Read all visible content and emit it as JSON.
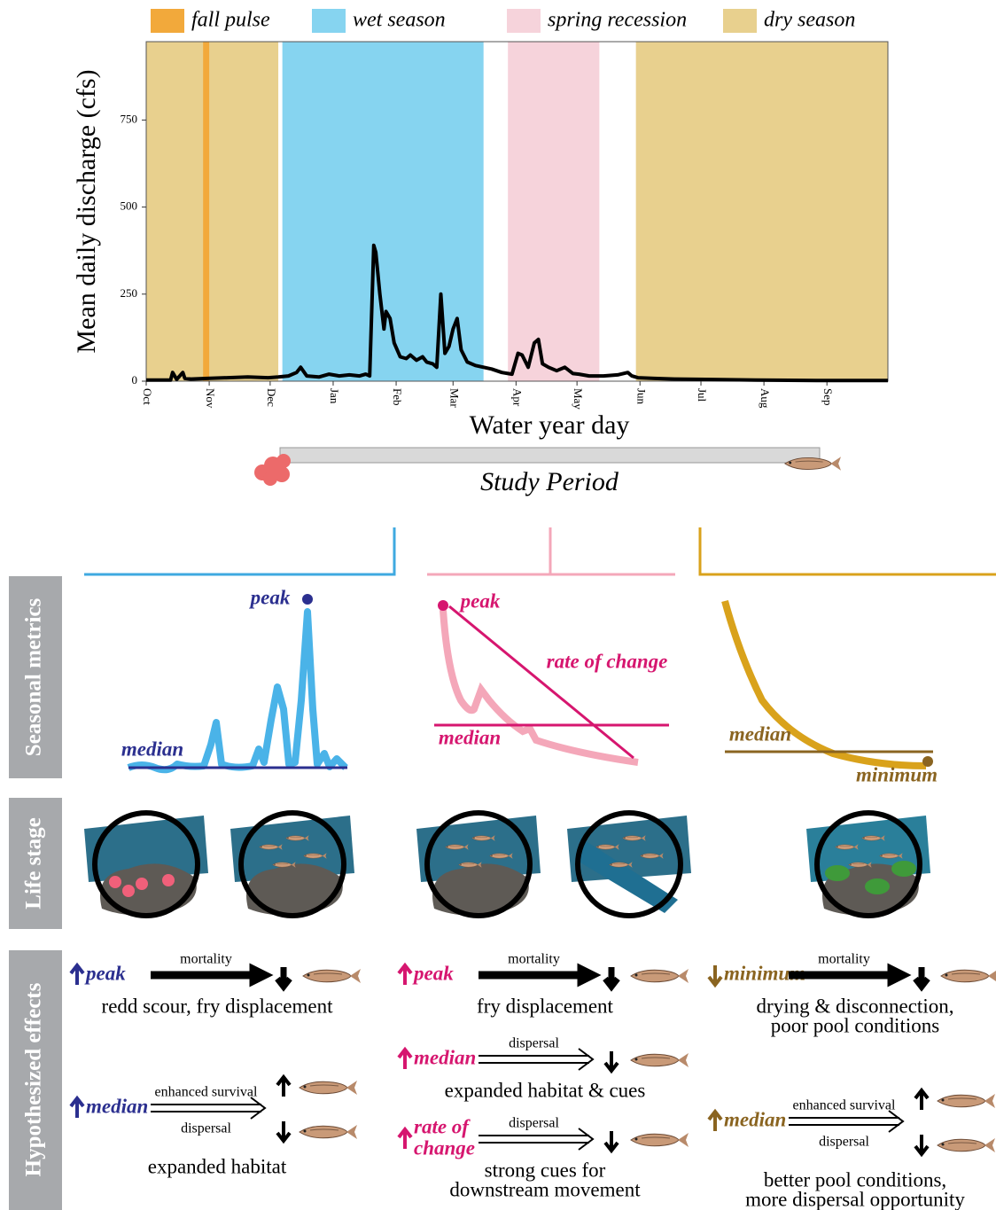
{
  "chart_data": {
    "type": "line",
    "ylabel": "Mean daily discharge (cfs)",
    "xlabel": "Water year day",
    "xlim": [
      0,
      365
    ],
    "ylim": [
      0,
      975
    ],
    "xticks": [
      {
        "value": 0,
        "label": "Oct"
      },
      {
        "value": 31,
        "label": "Nov"
      },
      {
        "value": 61,
        "label": "Dec"
      },
      {
        "value": 92,
        "label": "Jan"
      },
      {
        "value": 123,
        "label": "Feb"
      },
      {
        "value": 151,
        "label": "Mar"
      },
      {
        "value": 182,
        "label": "Apr"
      },
      {
        "value": 212,
        "label": "May"
      },
      {
        "value": 243,
        "label": "Jun"
      },
      {
        "value": 273,
        "label": "Jul"
      },
      {
        "value": 304,
        "label": "Aug"
      },
      {
        "value": 335,
        "label": "Sep"
      }
    ],
    "yticks": [
      0,
      250,
      500,
      750
    ],
    "seasons": [
      {
        "name": "fall pulse",
        "color": "#f2a93b",
        "spans": [
          [
            28,
            31
          ]
        ]
      },
      {
        "name": "wet season",
        "color": "#86d4f0",
        "spans": [
          [
            67,
            166
          ]
        ]
      },
      {
        "name": "spring recession",
        "color": "#f6d3db",
        "spans": [
          [
            178,
            223
          ]
        ]
      },
      {
        "name": "dry season",
        "color": "#e8d08e",
        "spans": [
          [
            0,
            65
          ],
          [
            241,
            365
          ]
        ]
      }
    ],
    "x": [
      0,
      8,
      12,
      13,
      15,
      18,
      19,
      22,
      30,
      40,
      50,
      60,
      65,
      70,
      74,
      76,
      79,
      85,
      90,
      95,
      100,
      105,
      108,
      110,
      112,
      113,
      115,
      117,
      118,
      120,
      122,
      125,
      128,
      130,
      133,
      136,
      138,
      141,
      143,
      145,
      147,
      149,
      151,
      153,
      155,
      158,
      162,
      166,
      170,
      175,
      180,
      183,
      185,
      188,
      191,
      193,
      195,
      198,
      202,
      206,
      210,
      213,
      218,
      225,
      232,
      237,
      239,
      242,
      250,
      260,
      275,
      300,
      330,
      365
    ],
    "series": [
      {
        "color": "#000000",
        "values": [
          3,
          3,
          3,
          25,
          5,
          25,
          8,
          6,
          8,
          10,
          12,
          10,
          12,
          15,
          25,
          40,
          15,
          12,
          20,
          15,
          18,
          15,
          20,
          15,
          390,
          370,
          250,
          150,
          200,
          180,
          110,
          70,
          65,
          75,
          60,
          70,
          55,
          50,
          40,
          250,
          80,
          100,
          150,
          180,
          90,
          55,
          45,
          40,
          35,
          25,
          20,
          80,
          75,
          40,
          110,
          120,
          50,
          40,
          30,
          40,
          22,
          20,
          15,
          15,
          18,
          25,
          15,
          10,
          8,
          6,
          5,
          3,
          2,
          2
        ]
      }
    ]
  },
  "study_period": "Study Period",
  "row_labels": [
    "Seasonal metrics",
    "Life stage",
    "Hypothesized effects"
  ],
  "columns": [
    {
      "color": "#2b2f8f",
      "metric_labels": [
        "peak",
        "median"
      ],
      "effects": [
        {
          "metric": [
            "peak"
          ],
          "direction": "up",
          "processes": [
            "mortality"
          ],
          "outcome": [
            "redd scour, fry displacement"
          ]
        },
        {
          "metric": [
            "median"
          ],
          "direction": "up",
          "processes": [
            "enhanced survival",
            "dispersal"
          ],
          "outcome": [
            "expanded habitat"
          ]
        }
      ]
    },
    {
      "color": "#d6166f",
      "metric_labels": [
        "peak",
        "rate of change",
        "median"
      ],
      "effects": [
        {
          "metric": [
            "peak"
          ],
          "direction": "up",
          "processes": [
            "mortality"
          ],
          "outcome": [
            "fry displacement"
          ]
        },
        {
          "metric": [
            "median"
          ],
          "direction": "up",
          "processes": [
            "dispersal"
          ],
          "outcome": [
            "expanded habitat & cues"
          ]
        },
        {
          "metric": [
            "rate of",
            "change"
          ],
          "direction": "up",
          "processes": [
            "dispersal"
          ],
          "outcome": [
            "strong cues for",
            "downstream movement"
          ]
        }
      ]
    },
    {
      "color": "#8a6420",
      "metric_labels": [
        "median",
        "minimum"
      ],
      "effects": [
        {
          "metric": [
            "minimum"
          ],
          "direction": "down",
          "processes": [
            "mortality"
          ],
          "outcome": [
            "drying & disconnection,",
            "poor pool conditions"
          ]
        },
        {
          "metric": [
            "median"
          ],
          "direction": "up",
          "processes": [
            "enhanced survival",
            "dispersal"
          ],
          "outcome": [
            "better pool conditions,",
            "more dispersal opportunity"
          ]
        }
      ]
    }
  ]
}
